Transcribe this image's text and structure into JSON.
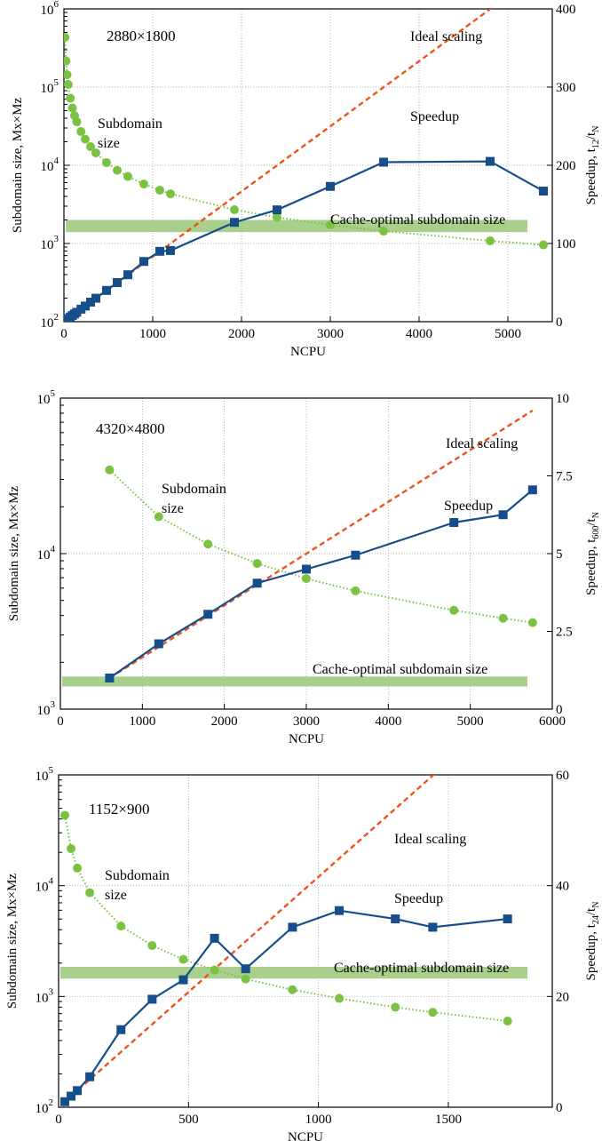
{
  "colors": {
    "speedup": "#154e8a",
    "subdomain": "#7cc242",
    "ideal": "#f0521c",
    "cache_band": "#a8cf8c",
    "grid": "#9a9a9a",
    "axis": "#000000"
  },
  "chart_data": [
    {
      "type": "line",
      "resolution": "2880×1800",
      "xlabel": "NCPU",
      "ylabel_left": "Subdomain size, Mx×Mz",
      "ylabel_right_parts": [
        "Speedup, t",
        "12",
        "/t",
        "N"
      ],
      "xlim": [
        0,
        5500
      ],
      "xticks": [
        0,
        1000,
        2000,
        3000,
        4000,
        5000
      ],
      "xtick_labels": [
        "0",
        "1000",
        "2000",
        "3000",
        "4000",
        "5000"
      ],
      "ylim_left_log": [
        100,
        1000000
      ],
      "yticks_left_exp": [
        "2",
        "3",
        "4",
        "5",
        "6"
      ],
      "ylim_right": [
        0,
        400
      ],
      "yticks_right": [
        0,
        100,
        200,
        300,
        400
      ],
      "yticks_right_labels": [
        "0",
        "100",
        "200",
        "300",
        "400"
      ],
      "grid": true,
      "annotations": {
        "ideal": "Ideal scaling",
        "speedup": "Speedup",
        "subdomain_1": "Subdomain",
        "subdomain_2": "size",
        "cache": "Cache-optimal subdomain size"
      },
      "cache_band_left": [
        1400,
        2000
      ],
      "ideal_line": {
        "x": [
          12,
          5500
        ],
        "y": [
          1,
          458
        ]
      },
      "speedup_series": {
        "name": "Speedup",
        "x": [
          12,
          24,
          36,
          48,
          72,
          96,
          120,
          144,
          192,
          240,
          300,
          360,
          480,
          600,
          720,
          900,
          1080,
          1200,
          1920,
          2400,
          3000,
          3600,
          4800,
          5400
        ],
        "y": [
          1,
          2,
          3,
          4,
          6,
          8,
          10,
          12,
          16,
          20,
          25,
          30,
          40,
          50,
          60,
          77,
          90,
          91,
          127,
          143,
          173,
          204,
          205,
          167
        ]
      },
      "subdomain_series": {
        "name": "Subdomain size",
        "x": [
          12,
          24,
          36,
          48,
          72,
          96,
          120,
          144,
          192,
          240,
          300,
          360,
          480,
          600,
          720,
          900,
          1080,
          1200,
          1920,
          2400,
          3000,
          3600,
          4800,
          5400
        ],
        "y": [
          432000,
          216000,
          144000,
          108000,
          72000,
          54000,
          43200,
          36000,
          27000,
          21600,
          17300,
          14400,
          10800,
          8640,
          7200,
          5760,
          4800,
          4320,
          2700,
          2160,
          1730,
          1440,
          1080,
          960
        ]
      }
    },
    {
      "type": "line",
      "resolution": "4320×4800",
      "xlabel": "NCPU",
      "ylabel_left": "Subdomain size, Mx×Mz",
      "ylabel_right_parts": [
        "Speedup, t",
        "600",
        "/t",
        "N"
      ],
      "xlim": [
        0,
        6000
      ],
      "xticks": [
        0,
        1000,
        2000,
        3000,
        4000,
        5000,
        6000
      ],
      "xtick_labels": [
        "0",
        "1000",
        "2000",
        "3000",
        "4000",
        "5000",
        "6000"
      ],
      "ylim_left_log": [
        1000,
        100000
      ],
      "yticks_left_exp": [
        "3",
        "4",
        "5"
      ],
      "ylim_right": [
        0,
        10
      ],
      "yticks_right": [
        0,
        2.5,
        5,
        7.5,
        10
      ],
      "yticks_right_labels": [
        "0",
        "2.5",
        "5",
        "7.5",
        "10"
      ],
      "grid": true,
      "annotations": {
        "ideal": "Ideal scaling",
        "speedup": "Speedup",
        "subdomain_1": "Subdomain",
        "subdomain_2": "size",
        "cache": "Cache-optimal subdomain size"
      },
      "cache_band_left": [
        1400,
        1620
      ],
      "ideal_line": {
        "x": [
          600,
          5760
        ],
        "y": [
          1,
          9.6
        ]
      },
      "speedup_series": {
        "name": "Speedup",
        "x": [
          600,
          1200,
          1800,
          2400,
          3000,
          3600,
          4800,
          5400,
          5760
        ],
        "y": [
          1,
          2.1,
          3.05,
          4.05,
          4.5,
          4.95,
          6.0,
          6.25,
          7.05
        ]
      },
      "subdomain_series": {
        "name": "Subdomain size",
        "x": [
          600,
          1200,
          1800,
          2400,
          3000,
          3600,
          4800,
          5400,
          5760
        ],
        "y": [
          34560,
          17280,
          11520,
          8640,
          6910,
          5760,
          4320,
          3840,
          3600
        ]
      }
    },
    {
      "type": "line",
      "resolution": "1152×900",
      "xlabel": "NCPU",
      "ylabel_left": "Subdomain size, Mx×Mz",
      "ylabel_right_parts": [
        "Speedup, t",
        "24",
        "/t",
        "N"
      ],
      "xlim": [
        0,
        1900
      ],
      "xticks": [
        0,
        500,
        1000,
        1500
      ],
      "xtick_labels": [
        "0",
        "500",
        "1000",
        "1500"
      ],
      "ylim_left_log": [
        100,
        100000
      ],
      "yticks_left_exp": [
        "2",
        "3",
        "4",
        "5"
      ],
      "ylim_right": [
        0,
        60
      ],
      "yticks_right": [
        0,
        20,
        40,
        60
      ],
      "yticks_right_labels": [
        "0",
        "20",
        "40",
        "60"
      ],
      "grid": true,
      "annotations": {
        "ideal": "Ideal scaling",
        "speedup": "Speedup",
        "subdomain_1": "Subdomain",
        "subdomain_2": "size",
        "cache": "Cache-optimal subdomain size"
      },
      "cache_band_left": [
        1450,
        1850
      ],
      "ideal_line": {
        "x": [
          24,
          1900
        ],
        "y": [
          1,
          79
        ]
      },
      "speedup_series": {
        "name": "Speedup",
        "x": [
          24,
          48,
          72,
          120,
          240,
          360,
          480,
          600,
          720,
          900,
          1080,
          1296,
          1440,
          1728
        ],
        "y": [
          1,
          2,
          3,
          5.5,
          14,
          19.5,
          23,
          30.5,
          25,
          32.5,
          35.5,
          34,
          32.5,
          34
        ]
      },
      "subdomain_series": {
        "name": "Subdomain size",
        "x": [
          24,
          48,
          72,
          120,
          240,
          360,
          480,
          600,
          720,
          900,
          1080,
          1296,
          1440,
          1728
        ],
        "y": [
          43200,
          21600,
          14400,
          8640,
          4320,
          2880,
          2160,
          1730,
          1440,
          1150,
          960,
          800,
          720,
          600
        ]
      }
    }
  ]
}
